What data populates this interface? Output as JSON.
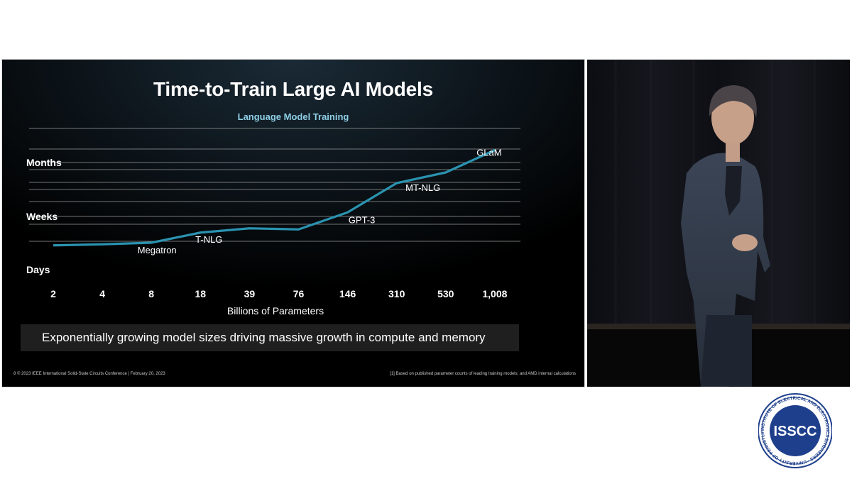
{
  "slide": {
    "title": "Time-to-Train Large AI Models",
    "subtitle": "Language Model Training",
    "banner": "Exponentially growing model sizes driving massive growth in compute and memory",
    "footer_left": "8   © 2023 IEEE International Solid-State Circuits Conference  |  February 20, 2023",
    "footer_right": "[1] Based on published parameter counts of leading training models; and AMD internal calculations"
  },
  "chart_data": {
    "type": "line",
    "xlabel": "Billions of Parameters",
    "categories": [
      "2",
      "4",
      "8",
      "18",
      "39",
      "76",
      "146",
      "310",
      "530",
      "1,008"
    ],
    "y_levels": [
      "Months",
      "Weeks",
      "Days"
    ],
    "series": [
      {
        "values": [
          0.47,
          0.49,
          0.52,
          0.71,
          0.79,
          0.77,
          1.09,
          1.64,
          1.84,
          2.26
        ]
      }
    ],
    "point_labels": [
      {
        "index": 2,
        "text": "Megatron"
      },
      {
        "index": 3,
        "text": "T-NLG"
      },
      {
        "index": 6,
        "text": "GPT-3"
      },
      {
        "index": 7,
        "text": "MT-NLG"
      },
      {
        "index": 9,
        "text": "GLaM"
      }
    ],
    "colors": {
      "line": "#2a93b0",
      "grid": "#9a9a9a"
    },
    "grid": true
  },
  "video": {
    "description_icon": "presenter-video"
  },
  "logo": {
    "text": "ISSCC",
    "ring_text": "INSTITUTE OF ELECTRICAL AND ELECTRONICS ENGINEERS · UNIVERSITY OF PENNSYLVANIA ·"
  }
}
